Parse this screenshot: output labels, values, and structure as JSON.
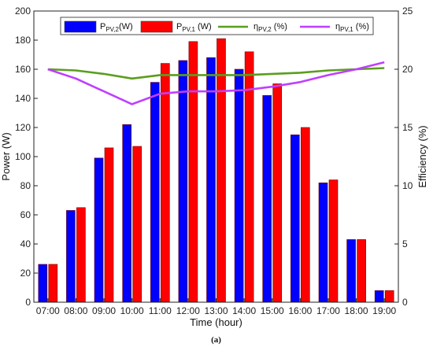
{
  "chart_data": {
    "type": "bar",
    "title": "",
    "caption": "(a)",
    "xlabel": "Time (hour)",
    "ylabel": "Power (W)",
    "y2label": "Efficiency (%)",
    "ylim": [
      0,
      200
    ],
    "y2lim": [
      0,
      25
    ],
    "yticks": [
      0,
      20,
      40,
      60,
      80,
      100,
      120,
      140,
      160,
      180,
      200
    ],
    "y2ticks": [
      0,
      5,
      10,
      15,
      20,
      25
    ],
    "grid": false,
    "legend_position": "top",
    "categories": [
      "07:00",
      "08:00",
      "09:00",
      "10:00",
      "11:00",
      "12:00",
      "13:00",
      "14:00",
      "15:00",
      "16:00",
      "17:00",
      "18:00",
      "19:00"
    ],
    "series": [
      {
        "name_main": "P",
        "name_sub": "PV,2",
        "name_suffix": "(W)",
        "kind": "bar",
        "axis": "left",
        "color": "#0000ff",
        "values": [
          26,
          63,
          99,
          122,
          151,
          166,
          168,
          160,
          142,
          115,
          82,
          43,
          8
        ]
      },
      {
        "name_main": "P",
        "name_sub": "PV,1",
        "name_suffix": " (W)",
        "kind": "bar",
        "axis": "left",
        "color": "#ff0000",
        "values": [
          26,
          65,
          106,
          107,
          164,
          179,
          181,
          172,
          150,
          120,
          84,
          43,
          8
        ]
      },
      {
        "name_main": "η",
        "name_sub": "PV,2",
        "name_suffix": " (%)",
        "kind": "line",
        "axis": "right",
        "color": "#5a9e1e",
        "values": [
          20.0,
          19.9,
          19.6,
          19.2,
          19.5,
          19.5,
          19.5,
          19.5,
          19.6,
          19.7,
          19.9,
          20.0,
          20.1
        ]
      },
      {
        "name_main": "η",
        "name_sub": "PV,1",
        "name_suffix": " (%)",
        "kind": "line",
        "axis": "right",
        "color": "#bf3fff",
        "values": [
          20.0,
          19.2,
          18.1,
          17.0,
          17.9,
          18.1,
          18.1,
          18.2,
          18.5,
          18.9,
          19.5,
          20.0,
          20.6
        ]
      }
    ]
  }
}
